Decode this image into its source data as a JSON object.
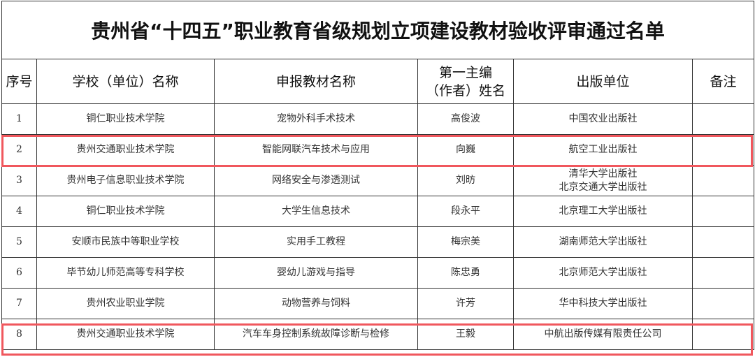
{
  "title": "贵州省“十四五”职业教育省级规划立项建设教材验收评审通过名单",
  "headers": {
    "seq": "序号",
    "school": "学校（单位）名称",
    "textbook": "申报教材名称",
    "author_line1": "第一主编",
    "author_line2": "（作者）姓名",
    "publisher": "出版单位",
    "remark": "备注"
  },
  "rows": [
    {
      "seq": "1",
      "school": "铜仁职业技术学院",
      "textbook": "宠物外科手术技术",
      "author": "高俊波",
      "publisher": "中国农业出版社",
      "publisher2": "",
      "remark": "",
      "highlighted": false
    },
    {
      "seq": "2",
      "school": "贵州交通职业技术学院",
      "textbook": "智能网联汽车技术与应用",
      "author": "向巍",
      "publisher": "航空工业出版社",
      "publisher2": "",
      "remark": "",
      "highlighted": true
    },
    {
      "seq": "3",
      "school": "贵州电子信息职业技术学院",
      "textbook": "网络安全与渗透测试",
      "author": "刘昉",
      "publisher": "清华大学出版社",
      "publisher2": "北京交通大学出版社",
      "remark": "",
      "highlighted": false
    },
    {
      "seq": "4",
      "school": "铜仁职业技术学院",
      "textbook": "大学生信息技术",
      "author": "段永平",
      "publisher": "北京理工大学出版社",
      "publisher2": "",
      "remark": "",
      "highlighted": false
    },
    {
      "seq": "5",
      "school": "安顺市民族中等职业学校",
      "textbook": "实用手工教程",
      "author": "梅宗美",
      "publisher": "湖南师范大学出版社",
      "publisher2": "",
      "remark": "",
      "highlighted": false
    },
    {
      "seq": "6",
      "school": "毕节幼儿师范高等专科学校",
      "textbook": "婴幼儿游戏与指导",
      "author": "陈忠勇",
      "publisher": "北京师范大学出版社",
      "publisher2": "",
      "remark": "",
      "highlighted": false
    },
    {
      "seq": "7",
      "school": "贵州农业职业学院",
      "textbook": "动物营养与饲料",
      "author": "许芳",
      "publisher": "华中科技大学出版社",
      "publisher2": "",
      "remark": "",
      "highlighted": false
    },
    {
      "seq": "8",
      "school": "贵州交通职业技术学院",
      "textbook": "汽车车身控制系统故障诊断与检修",
      "author": "王毅",
      "publisher": "中航出版传媒有限责任公司",
      "publisher2": "",
      "remark": "",
      "highlighted": true
    }
  ],
  "colors": {
    "highlight_border": "#f0575d",
    "grid": "#333333"
  }
}
